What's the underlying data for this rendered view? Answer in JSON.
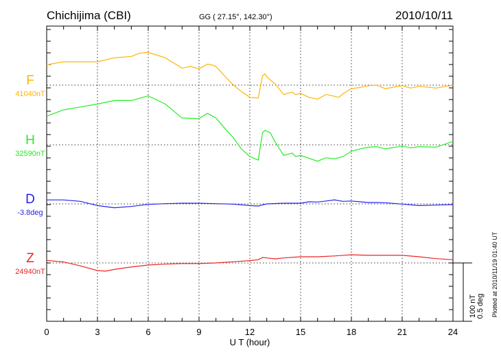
{
  "header": {
    "station": "Chichijima (CBI)",
    "coords": "GG ( 27.15°, 142.30°)",
    "date": "2010/10/11"
  },
  "footer": {
    "plotted": "Plotted at 2010/11/19 01:40 UT"
  },
  "scale": {
    "nt": "100 nT",
    "deg": "0.5 deg"
  },
  "chart_data": {
    "type": "line",
    "title": "Chichijima (CBI) 2010/10/11",
    "xlabel": "U T (hour)",
    "xlim": [
      0,
      24
    ],
    "xticks": [
      "0",
      "3",
      "6",
      "9",
      "12",
      "15",
      "18",
      "21",
      "24"
    ],
    "grid": true,
    "scale_per_bar": {
      "nT": 100,
      "deg": 0.5
    },
    "series": [
      {
        "name": "F",
        "baseline_label": "41040nT",
        "color": "#ffb400",
        "unit": "nT",
        "points": [
          [
            0,
            35
          ],
          [
            1,
            40
          ],
          [
            2,
            40
          ],
          [
            3,
            40
          ],
          [
            4,
            47
          ],
          [
            5,
            49
          ],
          [
            5.5,
            55
          ],
          [
            6,
            56
          ],
          [
            7,
            47
          ],
          [
            8,
            29
          ],
          [
            8.5,
            32
          ],
          [
            9,
            28
          ],
          [
            9.5,
            36
          ],
          [
            9.75,
            35
          ],
          [
            10,
            32
          ],
          [
            10.5,
            16
          ],
          [
            11,
            1
          ],
          [
            11.5,
            -11
          ],
          [
            12,
            -21
          ],
          [
            12.5,
            -22
          ],
          [
            12.75,
            16
          ],
          [
            12.9,
            19
          ],
          [
            13,
            14
          ],
          [
            13.5,
            2
          ],
          [
            14,
            -16
          ],
          [
            14.5,
            -12
          ],
          [
            14.7,
            -16
          ],
          [
            15,
            -14
          ],
          [
            15.5,
            -21
          ],
          [
            16,
            -24
          ],
          [
            16.5,
            -16
          ],
          [
            17,
            -19
          ],
          [
            17.25,
            -21
          ],
          [
            17.5,
            -15
          ],
          [
            18,
            -6
          ],
          [
            18.5,
            -4
          ],
          [
            19,
            -1
          ],
          [
            19.5,
            0
          ],
          [
            20,
            -6
          ],
          [
            21,
            -1
          ],
          [
            21.5,
            -5
          ],
          [
            22,
            -2
          ],
          [
            23,
            -5
          ],
          [
            24,
            0
          ]
        ]
      },
      {
        "name": "H",
        "baseline_label": "32590nT",
        "color": "#22ee22",
        "unit": "nT",
        "points": [
          [
            0,
            49
          ],
          [
            1,
            60
          ],
          [
            2,
            65
          ],
          [
            3,
            70
          ],
          [
            4,
            76
          ],
          [
            5,
            76
          ],
          [
            6,
            84
          ],
          [
            7,
            70
          ],
          [
            8,
            46
          ],
          [
            9,
            45
          ],
          [
            9.5,
            54
          ],
          [
            10,
            46
          ],
          [
            10.5,
            29
          ],
          [
            11,
            13
          ],
          [
            11.5,
            -7
          ],
          [
            12,
            -20
          ],
          [
            12.5,
            -26
          ],
          [
            12.75,
            21
          ],
          [
            12.9,
            25
          ],
          [
            13.2,
            21
          ],
          [
            13.5,
            5
          ],
          [
            14,
            -18
          ],
          [
            14.5,
            -14
          ],
          [
            14.7,
            -20
          ],
          [
            15,
            -18
          ],
          [
            15.5,
            -23
          ],
          [
            16,
            -28
          ],
          [
            16.5,
            -22
          ],
          [
            17,
            -24
          ],
          [
            17.5,
            -20
          ],
          [
            18,
            -11
          ],
          [
            18.5,
            -7
          ],
          [
            19,
            -4
          ],
          [
            19.5,
            -3
          ],
          [
            20,
            -7
          ],
          [
            21,
            -2
          ],
          [
            21.5,
            -5
          ],
          [
            22,
            -3
          ],
          [
            23,
            -4
          ],
          [
            24,
            6
          ]
        ]
      },
      {
        "name": "D",
        "baseline_label": "-3.8deg",
        "color": "#2222ee",
        "unit": "deg",
        "points": [
          [
            0,
            0.034
          ],
          [
            1,
            0.034
          ],
          [
            2,
            0.022
          ],
          [
            3,
            -0.014
          ],
          [
            4,
            -0.033
          ],
          [
            5,
            -0.022
          ],
          [
            6,
            -0.004
          ],
          [
            7,
            0.002
          ],
          [
            8,
            0.006
          ],
          [
            9,
            0.006
          ],
          [
            10,
            0.002
          ],
          [
            11,
            -0.002
          ],
          [
            12,
            -0.014
          ],
          [
            12.5,
            -0.018
          ],
          [
            13,
            0
          ],
          [
            14,
            0.006
          ],
          [
            15,
            0.006
          ],
          [
            15.5,
            0.018
          ],
          [
            16,
            0.016
          ],
          [
            16.5,
            0.025
          ],
          [
            17,
            0.035
          ],
          [
            17.5,
            0.022
          ],
          [
            18,
            0.025
          ],
          [
            18.5,
            0.018
          ],
          [
            19,
            0.012
          ],
          [
            19.5,
            0.012
          ],
          [
            20,
            0.01
          ],
          [
            21,
            -0.002
          ],
          [
            22,
            -0.014
          ],
          [
            23,
            -0.01
          ],
          [
            24,
            -0.006
          ]
        ]
      },
      {
        "name": "Z",
        "baseline_label": "24940nT",
        "color": "#ee2222",
        "unit": "nT",
        "points": [
          [
            0,
            4.4
          ],
          [
            1,
            1.6
          ],
          [
            2,
            -5
          ],
          [
            3,
            -13
          ],
          [
            3.5,
            -14
          ],
          [
            4,
            -11
          ],
          [
            5,
            -7
          ],
          [
            6,
            -3.5
          ],
          [
            7,
            -2
          ],
          [
            8,
            -1
          ],
          [
            9,
            -1
          ],
          [
            10,
            0
          ],
          [
            11,
            2
          ],
          [
            12,
            4
          ],
          [
            12.5,
            5.5
          ],
          [
            12.75,
            9.4
          ],
          [
            13,
            8.6
          ],
          [
            13.5,
            7
          ],
          [
            14,
            8.6
          ],
          [
            15,
            10.6
          ],
          [
            16,
            10.6
          ],
          [
            17,
            12
          ],
          [
            18,
            14
          ],
          [
            19,
            13
          ],
          [
            20,
            13
          ],
          [
            21,
            13
          ],
          [
            22,
            10.6
          ],
          [
            23,
            7.4
          ],
          [
            24,
            5.5
          ]
        ]
      }
    ]
  }
}
